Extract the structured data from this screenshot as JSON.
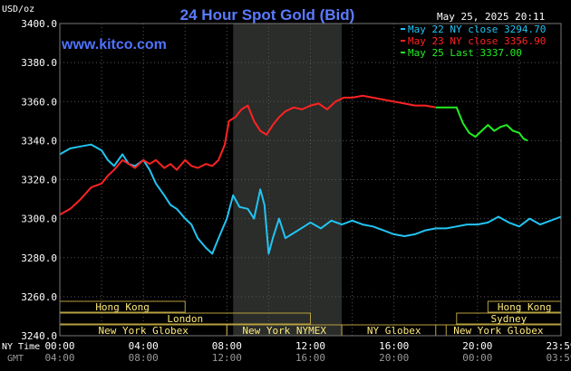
{
  "header": {
    "title": "24 Hour Spot Gold (Bid)",
    "unit": "USD/oz",
    "timestamp": "May 25, 2025 20:11",
    "site": "www.kitco.com"
  },
  "legend": [
    {
      "text": "May 22 NY close 3294.70",
      "color": "#22c4f2"
    },
    {
      "text": "May 23 NY close 3356.90",
      "color": "#ff2222"
    },
    {
      "text": "May 25 Last 3337.00",
      "color": "#22ee22"
    }
  ],
  "axis": {
    "ny_time_label": "NY Time",
    "gmt_label": "GMT",
    "ny_ticks": [
      {
        "h": 0,
        "label": "00:00"
      },
      {
        "h": 4,
        "label": "04:00"
      },
      {
        "h": 8,
        "label": "08:00"
      },
      {
        "h": 12,
        "label": "12:00"
      },
      {
        "h": 16,
        "label": "16:00"
      },
      {
        "h": 20,
        "label": "20:00"
      },
      {
        "h": 24,
        "label": "23:59"
      }
    ],
    "gmt_ticks": [
      {
        "h": 0,
        "label": "04:00"
      },
      {
        "h": 4,
        "label": "08:00"
      },
      {
        "h": 8,
        "label": "12:00"
      },
      {
        "h": 12,
        "label": "16:00"
      },
      {
        "h": 16,
        "label": "20:00"
      },
      {
        "h": 20,
        "label": "00:00"
      },
      {
        "h": 24,
        "label": "03:59"
      }
    ]
  },
  "sessions": [
    {
      "label": "Hong Kong",
      "start": 0,
      "end": 6,
      "row": 0
    },
    {
      "label": "London",
      "start": 0,
      "end": 12,
      "row": 1
    },
    {
      "label": "New York Globex",
      "start": 0,
      "end": 8,
      "row": 2
    },
    {
      "label": "New York NYMEX",
      "start": 8,
      "end": 13.5,
      "row": 2
    },
    {
      "label": "NY Globex",
      "start": 13.5,
      "end": 18.5,
      "row": 2
    },
    {
      "label": "Hong Kong",
      "start": 20.5,
      "end": 24,
      "row": 0
    },
    {
      "label": "Sydney",
      "start": 19,
      "end": 24,
      "row": 1
    },
    {
      "label": "New York Globex",
      "start": 18,
      "end": 24,
      "row": 2
    }
  ],
  "shaded_region": {
    "start": 8.3,
    "end": 13.5
  },
  "chart_data": {
    "type": "line",
    "title": "24 Hour Spot Gold (Bid)",
    "xlabel": "NY Time",
    "ylabel": "USD/oz",
    "x_unit": "hours (NY time)",
    "xlim": [
      0,
      24
    ],
    "ylim": [
      3240,
      3400
    ],
    "yticks": [
      3240,
      3260,
      3280,
      3300,
      3320,
      3340,
      3360,
      3380,
      3400
    ],
    "grid": true,
    "legend_position": "top-right",
    "series": [
      {
        "name": "May 22 NY close 3294.70",
        "color": "#22c4f2",
        "x": [
          0,
          0.5,
          1,
          1.5,
          2,
          2.3,
          2.6,
          3,
          3.3,
          3.6,
          4,
          4.3,
          4.6,
          5,
          5.3,
          5.6,
          6,
          6.3,
          6.6,
          7,
          7.3,
          7.6,
          8,
          8.3,
          8.6,
          9,
          9.3,
          9.6,
          9.8,
          10,
          10.2,
          10.5,
          10.8,
          11.1,
          11.4,
          11.7,
          12,
          12.5,
          13,
          13.5,
          14,
          14.5,
          15,
          15.5,
          16,
          16.5,
          17,
          17.5,
          18,
          18.5,
          19,
          19.5,
          20,
          20.5,
          21,
          21.5,
          22,
          22.5,
          23,
          23.5,
          24
        ],
        "y": [
          3333,
          3336,
          3337,
          3338,
          3335,
          3330,
          3327,
          3333,
          3328,
          3327,
          3330,
          3325,
          3318,
          3312,
          3307,
          3305,
          3300,
          3297,
          3290,
          3285,
          3282,
          3290,
          3300,
          3312,
          3306,
          3305,
          3300,
          3315,
          3307,
          3282,
          3290,
          3300,
          3290,
          3292,
          3294,
          3296,
          3298,
          3295,
          3299,
          3297,
          3299,
          3297,
          3296,
          3294,
          3292,
          3291,
          3292,
          3294,
          3295,
          3295,
          3296,
          3297,
          3297,
          3298,
          3301,
          3298,
          3296,
          3300,
          3297,
          3299,
          3301
        ]
      },
      {
        "name": "May 23 NY close 3356.90",
        "color": "#ff2222",
        "x": [
          0,
          0.5,
          1,
          1.5,
          2,
          2.3,
          2.6,
          3,
          3.3,
          3.6,
          4,
          4.3,
          4.6,
          5,
          5.3,
          5.6,
          6,
          6.3,
          6.6,
          7,
          7.3,
          7.6,
          7.9,
          8.1,
          8.4,
          8.7,
          9,
          9.3,
          9.6,
          9.9,
          10.2,
          10.5,
          10.8,
          11.2,
          11.6,
          12,
          12.4,
          12.8,
          13.2,
          13.6,
          14,
          14.5,
          15,
          15.5,
          16,
          16.5,
          17,
          17.5,
          18
        ],
        "y": [
          3302,
          3305,
          3310,
          3316,
          3318,
          3322,
          3325,
          3330,
          3328,
          3326,
          3330,
          3328,
          3330,
          3326,
          3328,
          3325,
          3330,
          3327,
          3326,
          3328,
          3327,
          3330,
          3338,
          3350,
          3352,
          3356,
          3358,
          3350,
          3345,
          3343,
          3348,
          3352,
          3355,
          3357,
          3356,
          3358,
          3359,
          3356,
          3360,
          3362,
          3362,
          3363,
          3362,
          3361,
          3360,
          3359,
          3358,
          3358,
          3357
        ]
      },
      {
        "name": "May 25 Last 3337.00",
        "color": "#22ee22",
        "x": [
          18,
          18.5,
          19,
          19.3,
          19.6,
          19.9,
          20.2,
          20.5,
          20.8,
          21.1,
          21.4,
          21.7,
          22,
          22.2,
          22.4
        ],
        "y": [
          3357,
          3357,
          3357,
          3349,
          3344,
          3342,
          3345,
          3348,
          3345,
          3347,
          3348,
          3345,
          3344,
          3341,
          3340
        ]
      }
    ]
  }
}
